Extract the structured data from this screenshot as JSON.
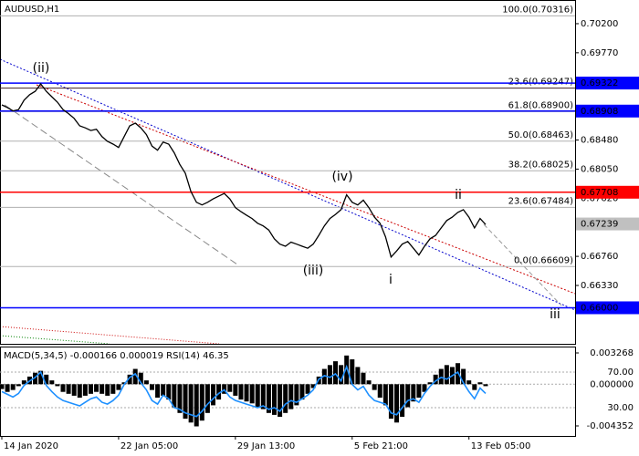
{
  "chart_data": [
    {
      "type": "line",
      "title": "AUDUSD,H1",
      "categories": [
        "14 Jan 2020",
        null,
        null,
        null,
        null,
        null,
        null,
        null,
        null,
        null,
        null,
        null,
        null,
        null,
        null,
        null,
        null,
        null,
        null,
        null,
        null,
        "22 Jan 05:00",
        null,
        null,
        null,
        null,
        null,
        null,
        null,
        null,
        null,
        null,
        null,
        null,
        null,
        null,
        null,
        null,
        null,
        null,
        null,
        null,
        "29 Jan 13:00",
        null,
        null,
        null,
        null,
        null,
        null,
        null,
        null,
        null,
        null,
        null,
        null,
        null,
        null,
        null,
        null,
        null,
        null,
        null,
        null,
        "5 Feb 21:00",
        null,
        null,
        null,
        null,
        null,
        null,
        null,
        null,
        null,
        null,
        null,
        null,
        null,
        null,
        null,
        null,
        null,
        null,
        null,
        null,
        "13 Feb 05:00",
        null,
        null,
        null
      ],
      "series": [
        {
          "color": "#000000",
          "values": [
            0.69,
            0.6896,
            0.6891,
            0.6893,
            0.6907,
            0.6915,
            0.692,
            0.6931,
            0.692,
            0.6912,
            0.6904,
            0.6893,
            0.6887,
            0.688,
            0.6869,
            0.6866,
            0.6862,
            0.6864,
            0.6853,
            0.6846,
            0.6842,
            0.6837,
            0.6853,
            0.6869,
            0.6873,
            0.6866,
            0.6856,
            0.6839,
            0.6833,
            0.6845,
            0.6842,
            0.6829,
            0.6812,
            0.6799,
            0.6772,
            0.6756,
            0.6752,
            0.6756,
            0.6761,
            0.6765,
            0.6769,
            0.6761,
            0.6748,
            0.6742,
            0.6737,
            0.6732,
            0.6725,
            0.6721,
            0.6715,
            0.6702,
            0.6694,
            0.6691,
            0.6697,
            0.6694,
            0.6691,
            0.6688,
            0.6694,
            0.6707,
            0.6721,
            0.6732,
            0.6738,
            0.6745,
            0.6767,
            0.6756,
            0.6752,
            0.6759,
            0.6748,
            0.6734,
            0.6725,
            0.6705,
            0.6675,
            0.6684,
            0.6694,
            0.6698,
            0.6688,
            0.6678,
            0.6691,
            0.6702,
            0.6707,
            0.6718,
            0.6729,
            0.6734,
            0.6741,
            0.6745,
            0.6734,
            0.6718,
            0.6732,
            0.6723
          ]
        }
      ],
      "ylim": [
        0.65467,
        0.7055
      ],
      "yticks": [
        {
          "value": 0.702,
          "label": "0.70200"
        },
        {
          "value": 0.6977,
          "label": "0.69770"
        },
        {
          "value": 0.6848,
          "label": "0.68480"
        },
        {
          "value": 0.6805,
          "label": "0.68050"
        },
        {
          "value": 0.6762,
          "label": "0.67620"
        },
        {
          "value": 0.6676,
          "label": "0.66760"
        },
        {
          "value": 0.6633,
          "label": "0.66330"
        }
      ],
      "price_lines": [
        {
          "value": 0.69322,
          "color": "#0000ff",
          "line": true
        },
        {
          "value": 0.68908,
          "color": "#0000ff",
          "line": true
        },
        {
          "value": 0.67708,
          "color": "#ff0000",
          "line": true
        },
        {
          "value": 0.67239,
          "color": "#c0c0c0",
          "line": false
        },
        {
          "value": 0.66,
          "label": "0.66000",
          "color": "#0000ff",
          "line": true
        }
      ],
      "fib_levels": [
        {
          "value": 0.70316,
          "label": "100.0(0.70316)",
          "color": "#b0b0b0"
        },
        {
          "value": 0.69247,
          "label": "23.6(0.69247)",
          "color": "#402020"
        },
        {
          "value": 0.689,
          "label": "61.8(0.68900)",
          "color": "#b0b0b0"
        },
        {
          "value": 0.68463,
          "label": "50.0(0.68463)",
          "color": "#b0b0b0"
        },
        {
          "value": 0.68025,
          "label": "38.2(0.68025)",
          "color": "#b0b0b0"
        },
        {
          "value": 0.67484,
          "label": "23.6(0.67484)",
          "color": "#b0b0b0"
        },
        {
          "value": 0.66609,
          "label": "0.0(0.66609)",
          "color": "#b0b0b0"
        }
      ],
      "annotations": [
        {
          "text": "(ii)",
          "color": "#cc0000"
        },
        {
          "text": "(iv)",
          "color": "#cc0000"
        },
        {
          "text": "(iii)",
          "color": "#cc0000"
        },
        {
          "text": "i",
          "color": "#808080"
        },
        {
          "text": "ii",
          "color": "#808080"
        },
        {
          "text": "iii",
          "color": "#808080"
        }
      ]
    },
    {
      "type": "bar",
      "title": "MACD(5,34,5) -0.000166 0.000019 RSI(14) 46.35",
      "series": [
        {
          "color": "#000000",
          "values": [
            -0.0005,
            -0.0008,
            -0.0006,
            -0.0002,
            0.0004,
            0.0008,
            0.0012,
            0.0014,
            0.001,
            0.0004,
            -0.0002,
            -0.0008,
            -0.001,
            -0.0012,
            -0.0014,
            -0.0012,
            -0.001,
            -0.0008,
            -0.001,
            -0.0012,
            -0.001,
            -0.0006,
            0.0002,
            0.001,
            0.0016,
            0.0012,
            0.0004,
            -0.0006,
            -0.0014,
            -0.0012,
            -0.0016,
            -0.0024,
            -0.003,
            -0.0036,
            -0.004,
            -0.0044,
            -0.0038,
            -0.003,
            -0.0022,
            -0.0016,
            -0.001,
            -0.0008,
            -0.0012,
            -0.0016,
            -0.0018,
            -0.002,
            -0.0024,
            -0.0026,
            -0.003,
            -0.0032,
            -0.0034,
            -0.003,
            -0.0026,
            -0.0022,
            -0.0016,
            -0.001,
            -0.0004,
            0.0008,
            0.0016,
            0.002,
            0.0024,
            0.002,
            0.003,
            0.0026,
            0.0018,
            0.0012,
            0.0004,
            -0.0006,
            -0.0014,
            -0.0022,
            -0.0036,
            -0.004,
            -0.0034,
            -0.0024,
            -0.0018,
            -0.0014,
            -0.0008,
            0.0002,
            0.001,
            0.0016,
            0.002,
            0.0018,
            0.0022,
            0.0016,
            0.0004,
            -0.0006,
            0.0002,
            -0.0002
          ]
        },
        {
          "color": "#1e90ff",
          "axis": "y2",
          "type": "line",
          "values": [
            48,
            45,
            42,
            46,
            55,
            60,
            64,
            70,
            55,
            48,
            42,
            38,
            36,
            34,
            32,
            36,
            40,
            42,
            36,
            34,
            38,
            44,
            56,
            64,
            68,
            58,
            50,
            38,
            34,
            44,
            40,
            30,
            28,
            24,
            22,
            20,
            26,
            34,
            40,
            46,
            50,
            42,
            38,
            36,
            34,
            32,
            30,
            32,
            28,
            30,
            26,
            34,
            38,
            36,
            40,
            44,
            50,
            62,
            66,
            64,
            68,
            60,
            76,
            56,
            50,
            54,
            44,
            38,
            36,
            34,
            24,
            22,
            30,
            38,
            40,
            36,
            46,
            54,
            60,
            64,
            62,
            66,
            70,
            58,
            48,
            40,
            52,
            46
          ]
        }
      ],
      "ylim": [
        -0.0054,
        0.003935
      ],
      "yticks": [
        0.003268,
        {
          "value": 0,
          "label": "0.000000"
        },
        -0.004352
      ],
      "y2lim": [
        -1.8,
        98.7
      ],
      "y2ticks": [
        {
          "value": 70,
          "label": "70.00"
        },
        {
          "value": 30,
          "label": "30.00"
        }
      ]
    }
  ]
}
